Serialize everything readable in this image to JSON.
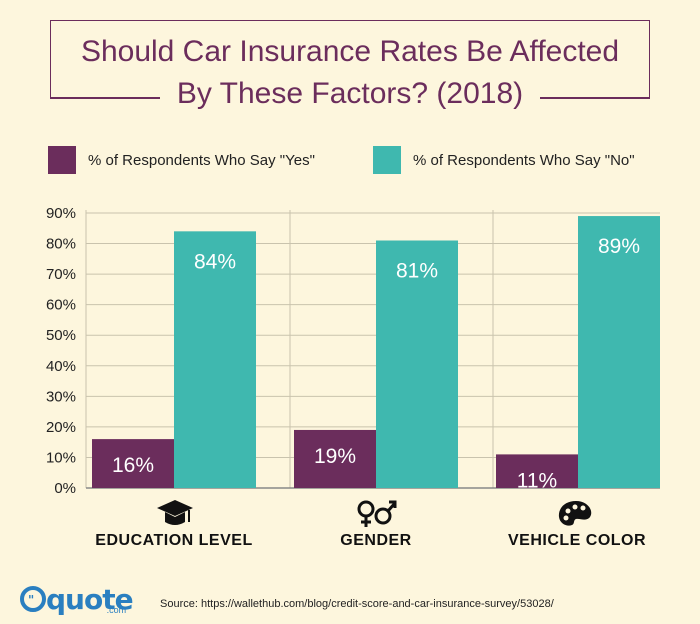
{
  "title_line1": "Should Car Insurance Rates Be Affected",
  "title_line2": "By These Factors? (2018)",
  "legend": {
    "yes_label": "% of Respondents Who Say \"Yes\"",
    "no_label": "% of Respondents Who Say \"No\""
  },
  "colors": {
    "yes": "#6b2d5c",
    "no": "#3fb8af",
    "title": "#6b2d5c",
    "background": "#fdf6dd"
  },
  "chart_data": {
    "type": "bar",
    "categories": [
      "EDUCATION LEVEL",
      "GENDER",
      "VEHICLE COLOR"
    ],
    "category_icons": [
      "graduation-cap-icon",
      "gender-symbols-icon",
      "paint-palette-icon"
    ],
    "series": [
      {
        "name": "% of Respondents Who Say \"Yes\"",
        "values": [
          16,
          19,
          11
        ],
        "labels": [
          "16%",
          "19%",
          "11%"
        ]
      },
      {
        "name": "% of Respondents Who Say \"No\"",
        "values": [
          84,
          81,
          89
        ],
        "labels": [
          "84%",
          "81%",
          "89%"
        ]
      }
    ],
    "yticks": [
      "0%",
      "10%",
      "20%",
      "30%",
      "40%",
      "50%",
      "60%",
      "70%",
      "80%",
      "90%"
    ],
    "ylim": [
      0,
      90
    ],
    "grid": true
  },
  "logo": {
    "text": "quote",
    "sub": ".com"
  },
  "source": "Source: https://wallethub.com/blog/credit-score-and-car-insurance-survey/53028/"
}
